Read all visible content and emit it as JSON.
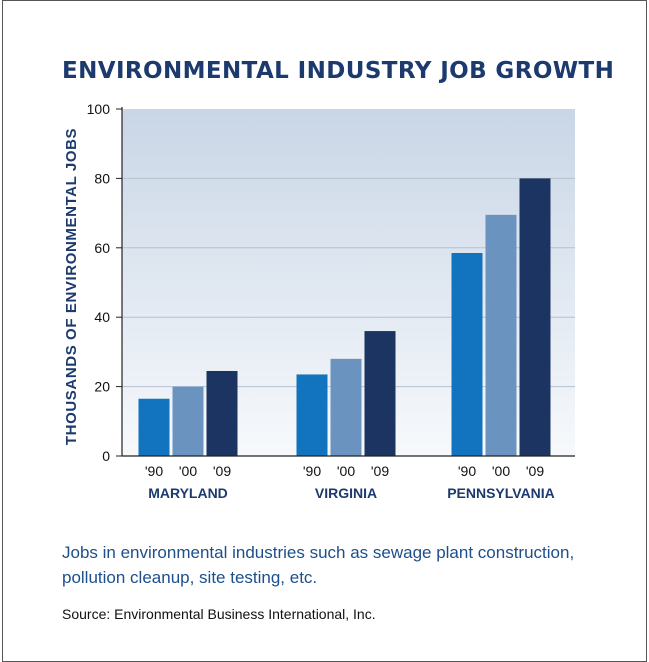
{
  "title": "ENVIRONMENTAL INDUSTRY JOB GROWTH",
  "caption": "Jobs in environmental industries such as sewage plant construction, pollution cleanup, site testing, etc.",
  "source": "Source: Environmental Business International, Inc.",
  "chart_data": {
    "type": "bar",
    "ylabel": "THOUSANDS OF ENVIRONMENTAL JOBS",
    "ylim": [
      0,
      100
    ],
    "yticks": [
      0,
      20,
      40,
      60,
      80,
      100
    ],
    "grid": true,
    "categories": [
      "MARYLAND",
      "VIRGINIA",
      "PENNSYLVANIA"
    ],
    "series": [
      {
        "name": "'90",
        "color": "#1273bf",
        "values": [
          16.5,
          23.5,
          58.5
        ]
      },
      {
        "name": "'00",
        "color": "#6a94bf",
        "values": [
          20,
          28,
          69.5
        ]
      },
      {
        "name": "'09",
        "color": "#1b3461",
        "values": [
          24.5,
          36,
          80
        ]
      }
    ],
    "colors": {
      "plot_top": "#c9d6e6",
      "plot_bottom": "#f7f9fc",
      "grid": "#b4c2d3",
      "labels": "#1c3a6e"
    }
  }
}
